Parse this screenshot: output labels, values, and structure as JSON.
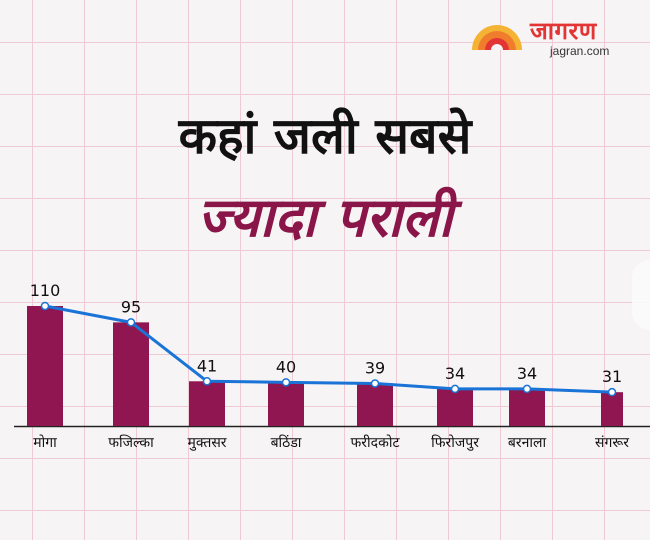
{
  "brand": {
    "name": "जागरण",
    "url": "jagran.com"
  },
  "title_line1": "कहां जली सबसे",
  "title_line2": "ज्यादा पराली",
  "colors": {
    "bar": "#8f1650",
    "line": "#1a73d6",
    "title_accent": "#8a1548",
    "brand": "#e33536"
  },
  "chart_data": {
    "type": "bar",
    "overlay": "line",
    "categories": [
      "मोगा",
      "फजिल्का",
      "मुक्तसर",
      "बठिंडा",
      "फरीदकोट",
      "फिरोजपुर",
      "बरनाला",
      "संगरूर"
    ],
    "values": [
      110,
      95,
      41,
      40,
      39,
      34,
      34,
      31
    ],
    "title": "कहां जली सबसे ज्यादा पराली",
    "xlabel": "",
    "ylabel": "",
    "ylim": [
      0,
      110
    ],
    "grid": true,
    "legend": "none"
  }
}
